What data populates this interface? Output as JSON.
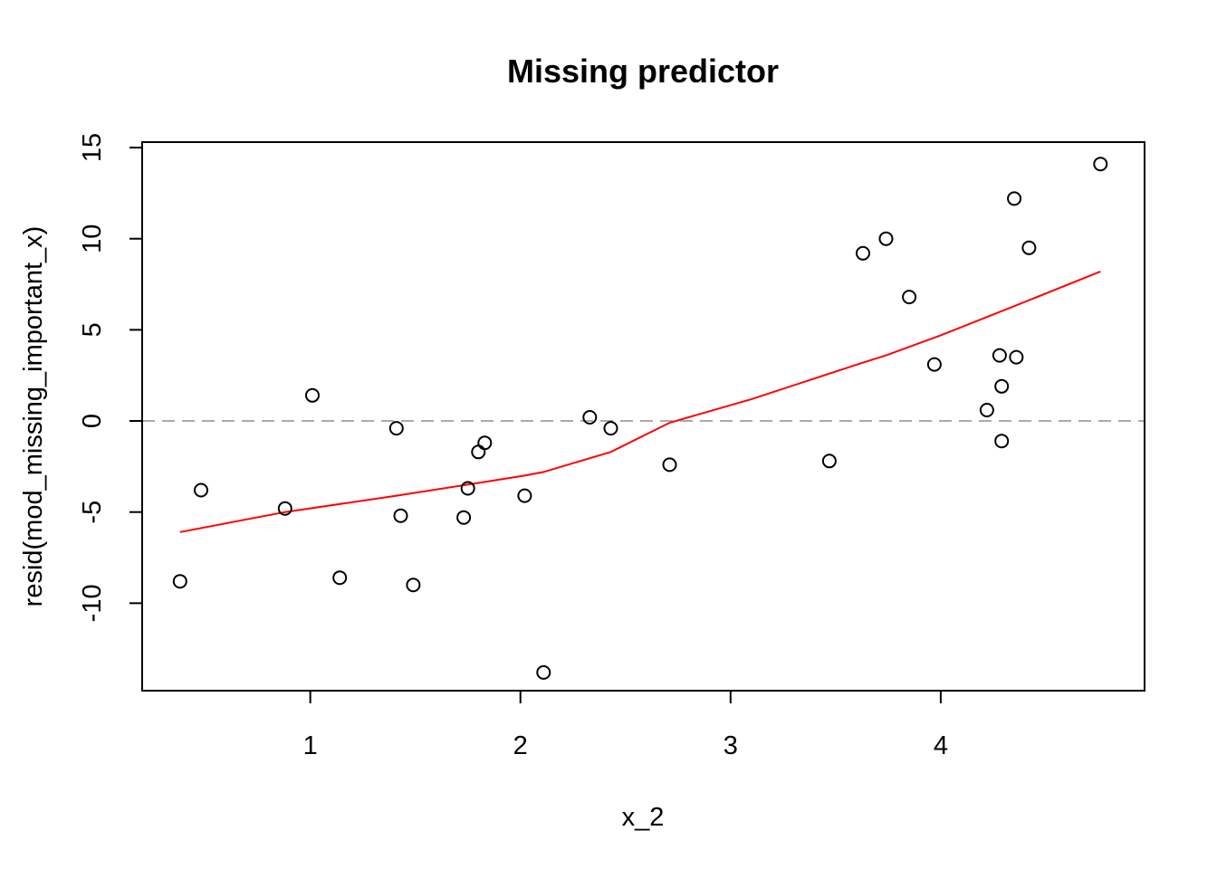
{
  "chart_data": {
    "type": "scatter",
    "title": "Missing predictor",
    "xlabel": "x_2",
    "ylabel": "resid(mod_missing_important_x)",
    "xlim": [
      0.2,
      4.97
    ],
    "ylim": [
      -14.8,
      15.3
    ],
    "xticks": [
      1,
      2,
      3,
      4
    ],
    "yticks": [
      -10,
      -5,
      0,
      5,
      10,
      15
    ],
    "xtick_labels": [
      "1",
      "2",
      "3",
      "4"
    ],
    "ytick_labels": [
      "-10",
      "-5",
      "0",
      "5",
      "10",
      "15"
    ],
    "grid": false,
    "legend": "none",
    "reference_line": {
      "y": 0,
      "style": "dashed",
      "color": "#aaaaaa"
    },
    "points": {
      "x": [
        0.38,
        0.48,
        0.88,
        1.01,
        1.14,
        1.41,
        1.43,
        1.49,
        1.73,
        1.75,
        1.8,
        1.83,
        2.02,
        2.11,
        2.33,
        2.43,
        2.71,
        3.47,
        3.63,
        3.74,
        3.85,
        3.97,
        4.22,
        4.28,
        4.29,
        4.29,
        4.35,
        4.36,
        4.42,
        4.76
      ],
      "y": [
        -8.8,
        -3.8,
        -4.8,
        1.4,
        -8.6,
        -0.4,
        -5.2,
        -9.0,
        -5.3,
        -3.7,
        -1.7,
        -1.2,
        -4.1,
        -13.8,
        0.2,
        -0.4,
        -2.4,
        -2.2,
        9.2,
        10.0,
        6.8,
        3.1,
        0.6,
        3.6,
        1.9,
        -1.1,
        12.2,
        3.5,
        9.5,
        14.1
      ],
      "color": "#000000"
    },
    "smooth_line": {
      "x": [
        0.38,
        0.88,
        1.41,
        1.8,
        2.02,
        2.11,
        2.43,
        2.71,
        3.1,
        3.63,
        3.74,
        4.0,
        4.35,
        4.76
      ],
      "y": [
        -6.1,
        -5.0,
        -4.1,
        -3.4,
        -3.0,
        -2.8,
        -1.7,
        -0.1,
        1.2,
        3.2,
        3.6,
        4.7,
        6.3,
        8.2
      ],
      "color": "#ff0000"
    }
  }
}
